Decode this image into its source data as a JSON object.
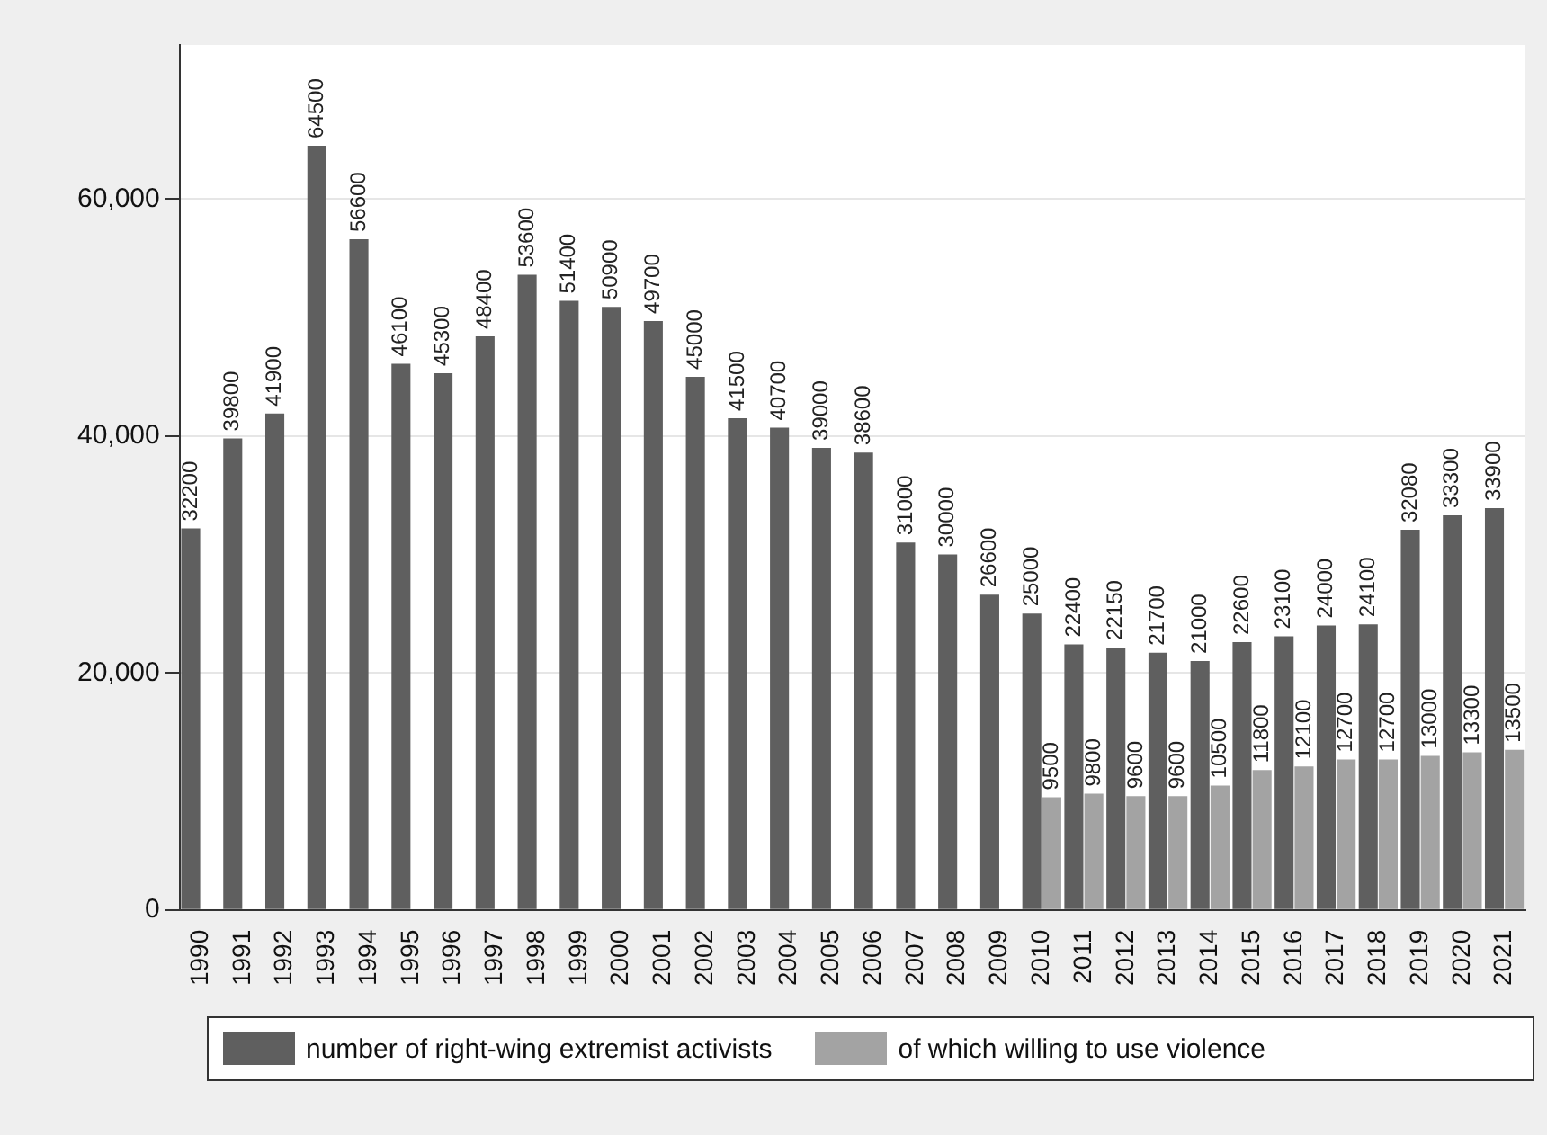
{
  "chart_data": {
    "type": "bar",
    "categories": [
      "1990",
      "1991",
      "1992",
      "1993",
      "1994",
      "1995",
      "1996",
      "1997",
      "1998",
      "1999",
      "2000",
      "2001",
      "2002",
      "2003",
      "2004",
      "2005",
      "2006",
      "2007",
      "2008",
      "2009",
      "2010",
      "2011",
      "2012",
      "2013",
      "2014",
      "2015",
      "2016",
      "2017",
      "2018",
      "2019",
      "2020",
      "2021"
    ],
    "series": [
      {
        "name": "number of right-wing extremist activists",
        "color": "#5f5f5f",
        "values": [
          32200,
          39800,
          41900,
          64500,
          56600,
          46100,
          45300,
          48400,
          53600,
          51400,
          50900,
          49700,
          45000,
          41500,
          40700,
          39000,
          38600,
          31000,
          30000,
          26600,
          25000,
          22400,
          22150,
          21700,
          21000,
          22600,
          23100,
          24000,
          24100,
          32080,
          33300,
          33900
        ]
      },
      {
        "name": "of which willing to use violence",
        "color": "#a3a3a3",
        "values": [
          null,
          null,
          null,
          null,
          null,
          null,
          null,
          null,
          null,
          null,
          null,
          null,
          null,
          null,
          null,
          null,
          null,
          null,
          null,
          null,
          9500,
          9800,
          9600,
          9600,
          10500,
          11800,
          12100,
          12700,
          12700,
          13000,
          13300,
          13500
        ]
      }
    ],
    "ylim": [
      0,
      73000
    ],
    "yticks": [
      {
        "value": 0,
        "label": "0"
      },
      {
        "value": 20000,
        "label": "20,000"
      },
      {
        "value": 40000,
        "label": "40,000"
      },
      {
        "value": 60000,
        "label": "60,000"
      }
    ],
    "grid": "y",
    "legend": "bottom",
    "data_labels": true
  }
}
